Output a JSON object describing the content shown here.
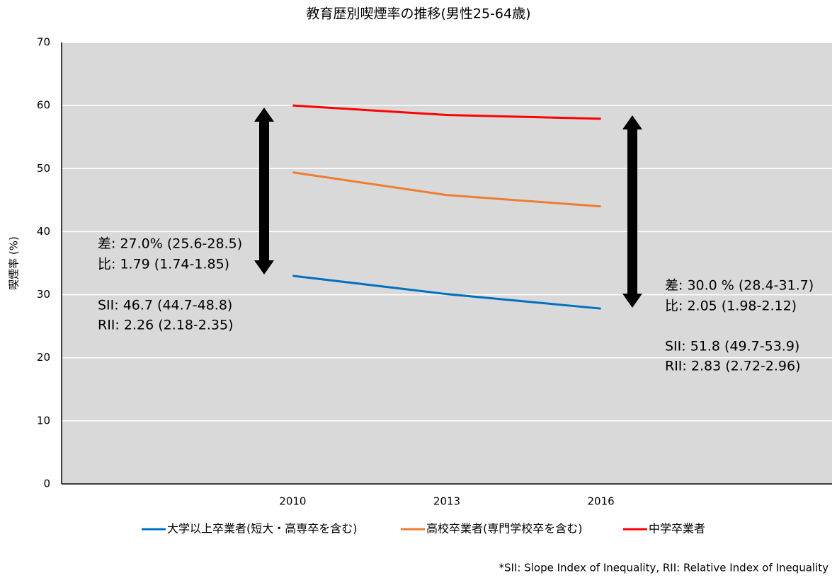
{
  "chart_data": {
    "type": "line",
    "title": "教育歴別喫煙率の推移(男性25-64歳)",
    "y_label": "喫煙率 (%)",
    "categories": [
      null,
      "2010",
      "2013",
      "2016",
      null
    ],
    "series": [
      {
        "name": "大学以上卒業者(短大・高専卒を含む)",
        "color": "#0070c0",
        "values": [
          null,
          33.0,
          30.1,
          27.8,
          null
        ]
      },
      {
        "name": "高校卒業者(専門学校卒を含む)",
        "color": "#ed7d31",
        "values": [
          null,
          49.4,
          45.8,
          44.0,
          null
        ]
      },
      {
        "name": "中学卒業者",
        "color": "#ff0000",
        "values": [
          null,
          60.0,
          58.5,
          57.9,
          null
        ]
      }
    ],
    "ylim": [
      0,
      70
    ],
    "yticks": [
      0,
      10,
      20,
      30,
      40,
      50,
      60,
      70
    ],
    "grid": true,
    "legend": "bottom",
    "annotations": [
      [
        "差: 27.0% (25.6-28.5)",
        "比: 1.79 (1.74-1.85)",
        "SII: 46.7 (44.7-48.8)",
        "RII: 2.26 (2.18-2.35)"
      ],
      [
        "差: 30.0 % (28.4-31.7)",
        "比: 2.05 (1.98-2.12)",
        "SII: 51.8 (49.7-53.9)",
        "RII: 2.83 (2.72-2.96)"
      ]
    ],
    "footnote": "*SII: Slope Index of Inequality, RII: Relative Index of Inequality"
  }
}
